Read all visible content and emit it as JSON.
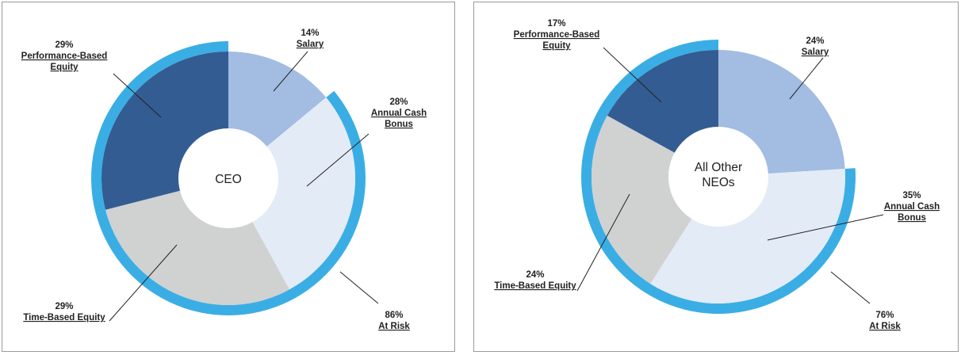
{
  "colors": {
    "salary": "#a2bce2",
    "annual_cash_bonus": "#e3ebf7",
    "time_based_equity": "#d0d1d1",
    "performance_based_equity": "#335c92",
    "at_risk_ring": "#3aaee4"
  },
  "chart_data": [
    {
      "type": "pie",
      "center_label": "CEO",
      "slices": [
        {
          "key": "salary",
          "pct_label": "14%",
          "label_lines": [
            "Salary"
          ],
          "value": 14
        },
        {
          "key": "annual_cash_bonus",
          "pct_label": "28%",
          "label_lines": [
            "Annual Cash",
            "Bonus"
          ],
          "value": 28
        },
        {
          "key": "time_based_equity",
          "pct_label": "29%",
          "label_lines": [
            "Time-Based Equity"
          ],
          "value": 29
        },
        {
          "key": "performance_based_equity",
          "pct_label": "29%",
          "label_lines": [
            "Performance-Based",
            "Equity"
          ],
          "value": 29
        }
      ],
      "at_risk": {
        "pct_label": "86%",
        "label": "At Risk",
        "value": 86
      }
    },
    {
      "type": "pie",
      "center_label_lines": [
        "All Other",
        "NEOs"
      ],
      "slices": [
        {
          "key": "salary",
          "pct_label": "24%",
          "label_lines": [
            "Salary"
          ],
          "value": 24
        },
        {
          "key": "annual_cash_bonus",
          "pct_label": "35%",
          "label_lines": [
            "Annual Cash",
            "Bonus"
          ],
          "value": 35
        },
        {
          "key": "time_based_equity",
          "pct_label": "24%",
          "label_lines": [
            "Time-Based Equity"
          ],
          "value": 24
        },
        {
          "key": "performance_based_equity",
          "pct_label": "17%",
          "label_lines": [
            "Performance-Based",
            "Equity"
          ],
          "value": 17
        }
      ],
      "at_risk": {
        "pct_label": "76%",
        "label": "At Risk",
        "value": 76
      }
    }
  ]
}
